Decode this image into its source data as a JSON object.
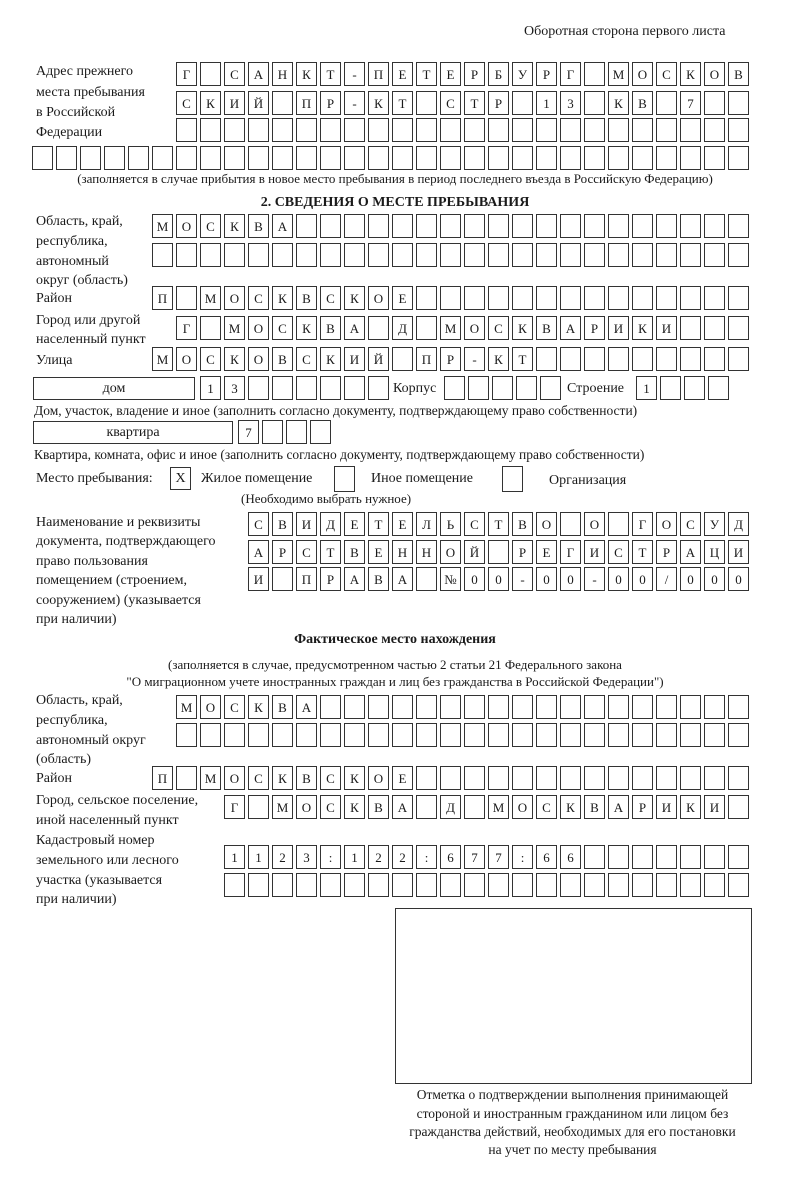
{
  "header": {
    "page_side": "Оборотная сторона первого листа"
  },
  "prev_address": {
    "label": [
      "Адрес прежнего",
      "места пребывания",
      "в Российской",
      "Федерации"
    ],
    "rows": [
      [
        "Г",
        "",
        "С",
        "А",
        "Н",
        "К",
        "Т",
        "-",
        "П",
        "Е",
        "Т",
        "Е",
        "Р",
        "Б",
        "У",
        "Р",
        "Г",
        "",
        "М",
        "О",
        "С",
        "К",
        "О",
        "В"
      ],
      [
        "С",
        "К",
        "И",
        "Й",
        "",
        "П",
        "Р",
        "-",
        "К",
        "Т",
        "",
        "С",
        "Т",
        "Р",
        "",
        "1",
        "3",
        "",
        "К",
        "В",
        "",
        "7",
        "",
        ""
      ],
      [
        "",
        "",
        "",
        "",
        "",
        "",
        "",
        "",
        "",
        "",
        "",
        "",
        "",
        "",
        "",
        "",
        "",
        "",
        "",
        "",
        "",
        "",
        "",
        ""
      ],
      [
        "",
        "",
        "",
        "",
        "",
        "",
        "",
        "",
        "",
        "",
        "",
        "",
        "",
        "",
        "",
        "",
        "",
        "",
        "",
        "",
        "",
        "",
        "",
        "",
        "",
        "",
        "",
        "",
        "",
        ""
      ]
    ],
    "note": "(заполняется в случае прибытия в новое место пребывания в период последнего въезда в Российскую Федерацию)"
  },
  "section2": {
    "title": "2. СВЕДЕНИЯ О МЕСТЕ ПРЕБЫВАНИЯ",
    "region_label": [
      "Область, край,",
      "республика,",
      "автономный",
      "округ (область)"
    ],
    "region_rows": [
      [
        "М",
        "О",
        "С",
        "К",
        "В",
        "А",
        "",
        "",
        "",
        "",
        "",
        "",
        "",
        "",
        "",
        "",
        "",
        "",
        "",
        "",
        "",
        "",
        "",
        "",
        ""
      ],
      [
        "",
        "",
        "",
        "",
        "",
        "",
        "",
        "",
        "",
        "",
        "",
        "",
        "",
        "",
        "",
        "",
        "",
        "",
        "",
        "",
        "",
        "",
        "",
        "",
        ""
      ]
    ],
    "district_label": "Район",
    "district": [
      "П",
      "",
      "М",
      "О",
      "С",
      "К",
      "В",
      "С",
      "К",
      "О",
      "Е",
      "",
      "",
      "",
      "",
      "",
      "",
      "",
      "",
      "",
      "",
      "",
      "",
      "",
      ""
    ],
    "city_label": [
      "Город или другой",
      "населенный пункт"
    ],
    "city": [
      "Г",
      "",
      "М",
      "О",
      "С",
      "К",
      "В",
      "А",
      "",
      "Д",
      "",
      "М",
      "О",
      "С",
      "К",
      "В",
      "А",
      "Р",
      "И",
      "К",
      "И",
      "",
      "",
      ""
    ],
    "street_label": "Улица",
    "street": [
      "М",
      "О",
      "С",
      "К",
      "О",
      "В",
      "С",
      "К",
      "И",
      "Й",
      "",
      "П",
      "Р",
      "-",
      "К",
      "Т",
      "",
      "",
      "",
      "",
      "",
      "",
      "",
      "",
      ""
    ],
    "house_type": "дом",
    "house": [
      "1",
      "3",
      "",
      "",
      "",
      "",
      "",
      ""
    ],
    "korpus_label": "Корпус",
    "korpus": [
      "",
      "",
      "",
      "",
      ""
    ],
    "building_label": "Строение",
    "building": [
      "1",
      "",
      "",
      ""
    ],
    "house_note": "Дом, участок, владение и иное (заполнить согласно документу, подтверждающему право собственности)",
    "flat_type": "квартира",
    "flat": [
      "7",
      "",
      "",
      ""
    ],
    "flat_note": "Квартира, комната, офис и иное (заполнить согласно документу, подтверждающему право собственности)",
    "stay_label": "Место пребывания:",
    "stay_options": [
      {
        "label": "Жилое помещение",
        "mark": "X"
      },
      {
        "label": "Иное помещение",
        "mark": ""
      },
      {
        "label": "Организация",
        "mark": ""
      }
    ],
    "stay_hint": "(Необходимо выбрать нужное)",
    "doc_label": [
      "Наименование и реквизиты",
      "документа, подтверждающего",
      "право пользования",
      "помещением (строением,",
      "сооружением) (указывается",
      "при наличии)"
    ],
    "doc_rows": [
      [
        "С",
        "В",
        "И",
        "Д",
        "Е",
        "Т",
        "Е",
        "Л",
        "Ь",
        "С",
        "Т",
        "В",
        "О",
        "",
        "О",
        "",
        "Г",
        "О",
        "С",
        "У",
        "Д"
      ],
      [
        "А",
        "Р",
        "С",
        "Т",
        "В",
        "Е",
        "Н",
        "Н",
        "О",
        "Й",
        "",
        "Р",
        "Е",
        "Г",
        "И",
        "С",
        "Т",
        "Р",
        "А",
        "Ц",
        "И"
      ],
      [
        "И",
        "",
        "П",
        "Р",
        "А",
        "В",
        "А",
        "",
        "№",
        "0",
        "0",
        "-",
        "0",
        "0",
        "-",
        "0",
        "0",
        "/",
        "0",
        "0",
        "0"
      ]
    ]
  },
  "actual": {
    "title": "Фактическое место нахождения",
    "note1": "(заполняется в случае, предусмотренном частью 2 статьи 21 Федерального закона",
    "note2": "\"О миграционном учете иностранных граждан и лиц без гражданства в Российской Федерации\")",
    "region_label": [
      "Область, край,",
      "республика,",
      "автономный округ",
      "(область)"
    ],
    "region_rows": [
      [
        "М",
        "О",
        "С",
        "К",
        "В",
        "А",
        "",
        "",
        "",
        "",
        "",
        "",
        "",
        "",
        "",
        "",
        "",
        "",
        "",
        "",
        "",
        "",
        "",
        ""
      ],
      [
        "",
        "",
        "",
        "",
        "",
        "",
        "",
        "",
        "",
        "",
        "",
        "",
        "",
        "",
        "",
        "",
        "",
        "",
        "",
        "",
        "",
        "",
        "",
        ""
      ]
    ],
    "district_label": "Район",
    "district": [
      "П",
      "",
      "М",
      "О",
      "С",
      "К",
      "В",
      "С",
      "К",
      "О",
      "Е",
      "",
      "",
      "",
      "",
      "",
      "",
      "",
      "",
      "",
      "",
      "",
      "",
      "",
      ""
    ],
    "city_label": [
      "Город, сельское поселение,",
      "иной населенный пункт"
    ],
    "city": [
      "Г",
      "",
      "М",
      "О",
      "С",
      "К",
      "В",
      "А",
      "",
      "Д",
      "",
      "М",
      "О",
      "С",
      "К",
      "В",
      "А",
      "Р",
      "И",
      "К",
      "И",
      ""
    ],
    "cadastre_label": [
      "Кадастровый номер",
      "земельного или лесного",
      "участка (указывается",
      "при наличии)"
    ],
    "cadastre_rows": [
      [
        "1",
        "1",
        "2",
        "3",
        ":",
        "1",
        "2",
        "2",
        ":",
        "6",
        "7",
        "7",
        ":",
        "6",
        "6",
        "",
        "",
        "",
        "",
        "",
        "",
        ""
      ],
      [
        "",
        "",
        "",
        "",
        "",
        "",
        "",
        "",
        "",
        "",
        "",
        "",
        "",
        "",
        "",
        "",
        "",
        "",
        "",
        "",
        "",
        ""
      ]
    ]
  },
  "stamp": {
    "caption": [
      "Отметка о подтверждении выполнения принимающей",
      "стороной и иностранным гражданином или лицом без",
      "гражданства действий, необходимых для его постановки",
      "на учет по месту пребывания"
    ]
  }
}
